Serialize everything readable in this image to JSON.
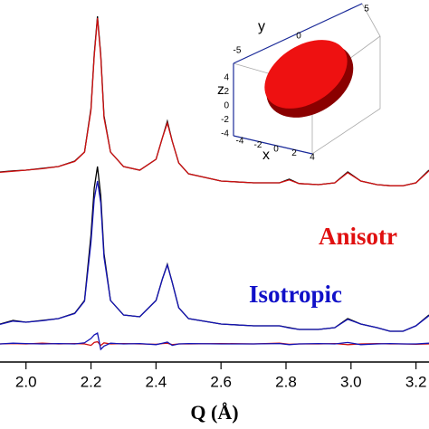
{
  "chart_data": {
    "type": "line",
    "x_label": "Q (Å)",
    "x": [
      1.92,
      1.96,
      2.0,
      2.05,
      2.1,
      2.15,
      2.18,
      2.2,
      2.21,
      2.22,
      2.23,
      2.24,
      2.26,
      2.3,
      2.35,
      2.4,
      2.42,
      2.435,
      2.45,
      2.47,
      2.5,
      2.6,
      2.7,
      2.78,
      2.81,
      2.84,
      2.9,
      2.95,
      2.99,
      3.03,
      3.08,
      3.12,
      3.16,
      3.2,
      3.24
    ],
    "series": [
      {
        "color": "#000000",
        "values": [
          52.5,
          52.8,
          53,
          53.5,
          54,
          55.5,
          58,
          70,
          85,
          95.5,
          85,
          68,
          58,
          54,
          53,
          56,
          62,
          66.5,
          61,
          55,
          52,
          50,
          49.5,
          49.5,
          50.5,
          49.3,
          49,
          49.5,
          52.5,
          50,
          49,
          48.7,
          48.7,
          49.5,
          53
        ]
      },
      {
        "color": "#d01010",
        "values": [
          52.4,
          52.7,
          53,
          53.4,
          54,
          55.4,
          58,
          69.5,
          84.5,
          95,
          84.5,
          67.5,
          58,
          54,
          53,
          56,
          62,
          66,
          61,
          55,
          52,
          50,
          49.5,
          49.5,
          50.3,
          49.3,
          49,
          49.5,
          52.3,
          50,
          49,
          48.7,
          48.7,
          49.5,
          52.8
        ]
      },
      {
        "color": "#000000",
        "values": [
          10.5,
          11.5,
          11,
          11.5,
          12,
          13.5,
          17,
          35,
          48,
          54,
          46,
          30,
          17,
          13,
          12.5,
          17,
          23,
          27,
          22,
          15,
          12,
          10.5,
          10,
          10,
          9.5,
          9,
          9,
          9.5,
          12,
          10.5,
          9.5,
          8.5,
          8.5,
          10,
          13
        ]
      },
      {
        "color": "#1414b4",
        "values": [
          10.4,
          11.3,
          11,
          11.4,
          12,
          13.4,
          16.8,
          33,
          45,
          50,
          44,
          29,
          17,
          13,
          12.5,
          17,
          23,
          26.8,
          22,
          15,
          12,
          10.5,
          10,
          10,
          9.4,
          9,
          9,
          9.5,
          11.8,
          10.5,
          9.5,
          8.5,
          8.5,
          10,
          12.8
        ]
      },
      {
        "color": "#d01010",
        "values": [
          5,
          5.1,
          5,
          5.2,
          5,
          5.1,
          5,
          4.6,
          5.4,
          5.6,
          4.6,
          5.3,
          5,
          5.1,
          5,
          4.9,
          5.1,
          5.2,
          4.8,
          5,
          5,
          5.1,
          5,
          5.2,
          4.9,
          5,
          5,
          5.1,
          4.8,
          5,
          5.1,
          5,
          5,
          4.9,
          5
        ]
      },
      {
        "color": "#1414b4",
        "values": [
          5,
          5.2,
          5.1,
          5,
          5.1,
          5,
          5.3,
          6.5,
          7.5,
          8,
          3.5,
          4.4,
          5.2,
          5,
          5.1,
          4.8,
          5.2,
          5.5,
          4.6,
          5,
          5.1,
          5,
          5,
          5.1,
          4.8,
          5,
          5.1,
          5,
          5.4,
          4.8,
          5,
          5.1,
          5,
          5,
          5.2
        ]
      }
    ],
    "xlim": [
      1.92,
      3.24
    ],
    "ylim": [
      0,
      100
    ],
    "xticks": [
      {
        "value": 2.0,
        "label": "2.0"
      },
      2.2,
      2.4,
      2.6,
      2.8,
      {
        "value": 3.0,
        "label": "3.0"
      },
      3.2
    ],
    "annotations": [
      "Anisotr",
      "Isotropic"
    ],
    "annotation_colors": [
      "#e01010",
      "#1010c8"
    ],
    "inset": {
      "y_label": "y",
      "z_label": "z",
      "x_label": "x",
      "y_ticks": [
        "5",
        "0",
        "-5"
      ],
      "z_ticks": [
        "4",
        "2",
        "0",
        "-2",
        "-4"
      ],
      "x_ticks": [
        "-4",
        "-2",
        "0",
        "2",
        "4"
      ]
    }
  }
}
